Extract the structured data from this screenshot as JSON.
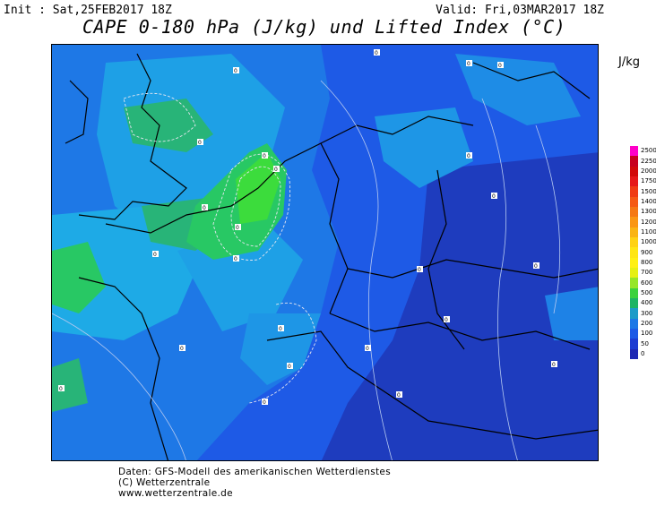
{
  "header": {
    "init": "Init : Sat,25FEB2017 18Z",
    "valid": "Valid: Fri,03MAR2017 18Z",
    "title": "CAPE 0-180 hPa (J/kg) und Lifted Index (°C)"
  },
  "legend": {
    "unit": "J/kg",
    "levels": [
      "2500",
      "2250",
      "2000",
      "1750",
      "1500",
      "1400",
      "1300",
      "1200",
      "1100",
      "1000",
      "900",
      "800",
      "700",
      "600",
      "500",
      "400",
      "300",
      "200",
      "100",
      "50",
      "0"
    ],
    "colors": [
      "#ff00c8",
      "#c8001e",
      "#d20a0a",
      "#e61919",
      "#f03c14",
      "#f55a14",
      "#f57814",
      "#fa9614",
      "#fab414",
      "#ffd214",
      "#ffe614",
      "#fff014",
      "#e6f014",
      "#96e628",
      "#3cd23c",
      "#1eb464",
      "#1e9bc8",
      "#1e78e6",
      "#1e5ae6",
      "#1e3cd2",
      "#1e28b4"
    ]
  },
  "map": {
    "contour_label": "0",
    "colors": {
      "deep": "#1e3cbe",
      "mid": "#1e5ae6",
      "light": "#1e82e6",
      "cyan": "#1eaae6",
      "green": "#28c864",
      "brightgreen": "#3cdc3c"
    }
  },
  "footer": {
    "line1": "Daten: GFS-Modell des amerikanischen Wetterdienstes",
    "line2": "(C) Wetterzentrale",
    "line3": "www.wetterzentrale.de"
  }
}
